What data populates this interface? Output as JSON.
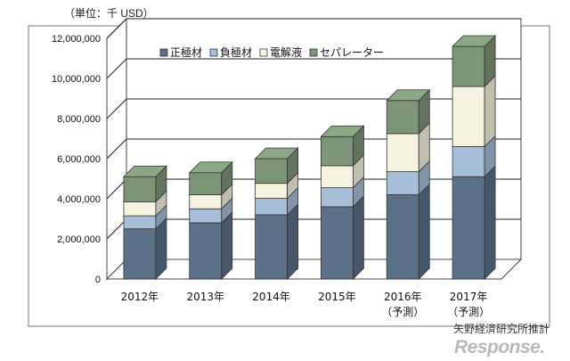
{
  "unit_label": "（単位：千 USD）",
  "source": "矢野経済研究所推計",
  "watermark": "Response.",
  "chart_data": {
    "type": "bar",
    "stacked": true,
    "three_d": true,
    "categories": [
      "2012年",
      "2013年",
      "2014年",
      "2015年",
      "2016年",
      "2017年"
    ],
    "category_sublabels": [
      "",
      "",
      "",
      "",
      "（予測）",
      "（予測）"
    ],
    "ylim": [
      0,
      12000000
    ],
    "yticks": [
      0,
      2000000,
      4000000,
      6000000,
      8000000,
      10000000,
      12000000
    ],
    "ytick_labels": [
      "0",
      "2,000,000",
      "4,000,000",
      "6,000,000",
      "8,000,000",
      "10,000,000",
      "12,000,000"
    ],
    "grid": true,
    "legend_position": "top",
    "series": [
      {
        "name": "正極材",
        "color": "#5b7089",
        "values": [
          2500000,
          2800000,
          3200000,
          3600000,
          4200000,
          5100000
        ]
      },
      {
        "name": "負極材",
        "color": "#a7bed8",
        "values": [
          650000,
          700000,
          820000,
          950000,
          1150000,
          1500000
        ]
      },
      {
        "name": "電解液",
        "color": "#f5f3e0",
        "values": [
          700000,
          700000,
          750000,
          1100000,
          1900000,
          3000000
        ]
      },
      {
        "name": "セパレーター",
        "color": "#7d9577",
        "values": [
          1250000,
          1100000,
          1230000,
          1450000,
          1650000,
          2000000
        ]
      }
    ]
  }
}
